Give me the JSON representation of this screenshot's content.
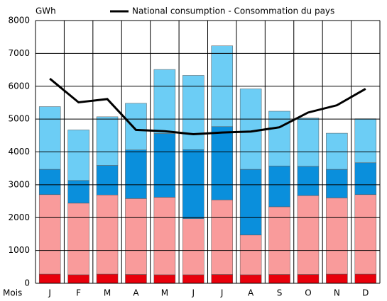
{
  "chart_data": {
    "type": "bar",
    "stacked": true,
    "y_unit": "GWh",
    "x_label": "Mois",
    "categories": [
      "J",
      "F",
      "M",
      "A",
      "M",
      "J",
      "J",
      "A",
      "S",
      "O",
      "N",
      "D"
    ],
    "series": [
      {
        "color": "#e8000b",
        "values": [
          280,
          260,
          280,
          270,
          260,
          260,
          270,
          260,
          270,
          270,
          280,
          280
        ]
      },
      {
        "color": "#f99b9b",
        "values": [
          2420,
          2180,
          2410,
          2310,
          2360,
          1710,
          2270,
          1210,
          2060,
          2400,
          2320,
          2420
        ]
      },
      {
        "color": "#0a8fdc",
        "values": [
          770,
          690,
          900,
          1480,
          1940,
          2100,
          2230,
          2000,
          1240,
          890,
          870,
          970
        ]
      },
      {
        "color": "#6ccdf5",
        "values": [
          1910,
          1540,
          1480,
          1420,
          1950,
          2260,
          2460,
          2450,
          1670,
          1470,
          1100,
          1340
        ]
      },
      {
        "name": "National consumption - Consommation du pays",
        "type": "line",
        "color": "#000000",
        "values": [
          6230,
          5510,
          5610,
          4670,
          4630,
          4540,
          4590,
          4620,
          4750,
          5200,
          5420,
          5920
        ]
      }
    ],
    "ylim": [
      0,
      8000
    ],
    "yticks": [
      0,
      1000,
      2000,
      3000,
      4000,
      5000,
      6000,
      7000,
      8000
    ],
    "grid": true
  }
}
